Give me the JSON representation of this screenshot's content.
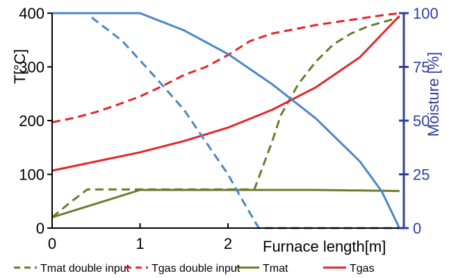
{
  "chart_data": {
    "type": "line",
    "title": "",
    "xlabel": "Furnace length[m]",
    "ylabel_left": "T[°C]",
    "ylabel_right": "Moisture [%]",
    "xlim": [
      0,
      4
    ],
    "ylim_left": [
      0,
      400
    ],
    "ylim_right": [
      0,
      100
    ],
    "x_ticks": [
      0,
      1,
      2
    ],
    "y_ticks_left": [
      0,
      100,
      200,
      300,
      400
    ],
    "y_ticks_right": [
      0,
      25,
      50,
      75,
      100
    ],
    "legend_position": "bottom",
    "colors": {
      "mat": "#6b7a2b",
      "gas": "#e3262b",
      "moisture": "#4a86c8",
      "right_axis": "#2d3f9b"
    },
    "series": [
      {
        "name": "Tmat double input",
        "axis": "left",
        "color": "#6b7a2b",
        "dashed": true,
        "points": [
          [
            0,
            20
          ],
          [
            0.2,
            47
          ],
          [
            0.4,
            72
          ],
          [
            1.0,
            72
          ],
          [
            1.5,
            72
          ],
          [
            2.0,
            72
          ],
          [
            2.3,
            72
          ],
          [
            2.5,
            160
          ],
          [
            2.6,
            210
          ],
          [
            2.8,
            268
          ],
          [
            3.0,
            310
          ],
          [
            3.2,
            342
          ],
          [
            3.4,
            362
          ],
          [
            3.6,
            376
          ],
          [
            3.8,
            385
          ],
          [
            3.95,
            392
          ]
        ]
      },
      {
        "name": "Tgas double input",
        "axis": "left",
        "color": "#e3262b",
        "dashed": true,
        "points": [
          [
            0,
            197
          ],
          [
            0.25,
            205
          ],
          [
            0.5,
            216
          ],
          [
            0.75,
            230
          ],
          [
            1.0,
            245
          ],
          [
            1.25,
            264
          ],
          [
            1.5,
            285
          ],
          [
            1.75,
            300
          ],
          [
            2.0,
            322
          ],
          [
            2.25,
            348
          ],
          [
            2.5,
            362
          ],
          [
            2.75,
            370
          ],
          [
            3.0,
            378
          ],
          [
            3.25,
            384
          ],
          [
            3.5,
            390
          ],
          [
            3.75,
            396
          ],
          [
            3.95,
            400
          ]
        ]
      },
      {
        "name": "Tmat",
        "axis": "left",
        "color": "#6b7a2b",
        "dashed": false,
        "points": [
          [
            0,
            20
          ],
          [
            1.0,
            71
          ],
          [
            2.0,
            71
          ],
          [
            3.0,
            71
          ],
          [
            3.5,
            70
          ],
          [
            3.95,
            69
          ]
        ]
      },
      {
        "name": "Tgas",
        "axis": "left",
        "color": "#e3262b",
        "dashed": false,
        "points": [
          [
            0,
            107
          ],
          [
            0.5,
            124
          ],
          [
            1.0,
            141
          ],
          [
            1.5,
            162
          ],
          [
            2.0,
            187
          ],
          [
            2.5,
            220
          ],
          [
            3.0,
            262
          ],
          [
            3.5,
            318
          ],
          [
            3.95,
            395
          ]
        ]
      },
      {
        "name": "",
        "axis": "right",
        "color": "#4a86c8",
        "dashed": true,
        "points": [
          [
            0.45,
            98
          ],
          [
            0.8,
            87
          ],
          [
            1.2,
            69
          ],
          [
            1.5,
            55
          ],
          [
            1.8,
            37
          ],
          [
            2.0,
            25
          ],
          [
            2.15,
            14
          ],
          [
            2.35,
            0
          ],
          [
            3.0,
            0
          ],
          [
            3.95,
            0
          ]
        ]
      },
      {
        "name": "",
        "axis": "right",
        "color": "#4a86c8",
        "dashed": false,
        "points": [
          [
            0,
            100
          ],
          [
            1.0,
            100
          ],
          [
            1.5,
            92
          ],
          [
            2.0,
            81
          ],
          [
            2.5,
            67
          ],
          [
            3.0,
            51
          ],
          [
            3.5,
            31
          ],
          [
            3.75,
            17
          ],
          [
            3.95,
            0
          ]
        ]
      }
    ],
    "legend": [
      {
        "label": "Tmat double input",
        "color": "#6b7a2b",
        "dashed": true
      },
      {
        "label": "Tgas double input",
        "color": "#e3262b",
        "dashed": true
      },
      {
        "label": "Tmat",
        "color": "#6b7a2b",
        "dashed": false
      },
      {
        "label": "Tgas",
        "color": "#e3262b",
        "dashed": false
      }
    ]
  }
}
